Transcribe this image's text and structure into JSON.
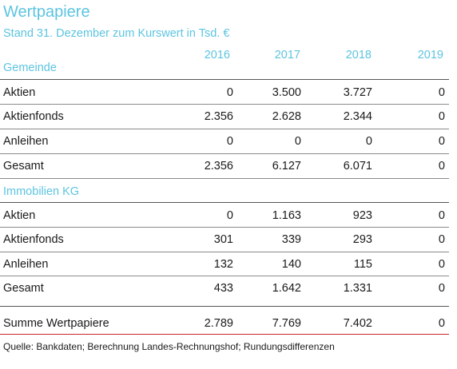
{
  "title": "Wertpapiere",
  "subtitle": "Stand 31. Dezember zum Kurswert in Tsd. €",
  "years": [
    "2016",
    "2017",
    "2018",
    "2019"
  ],
  "sections": [
    {
      "heading": "Gemeinde",
      "rows": [
        {
          "label": "Aktien",
          "values": [
            "0",
            "3.500",
            "3.727",
            "0"
          ]
        },
        {
          "label": "Aktienfonds",
          "values": [
            "2.356",
            "2.628",
            "2.344",
            "0"
          ]
        },
        {
          "label": "Anleihen",
          "values": [
            "0",
            "0",
            "0",
            "0"
          ]
        },
        {
          "label": "Gesamt",
          "values": [
            "2.356",
            "6.127",
            "6.071",
            "0"
          ]
        }
      ]
    },
    {
      "heading": "Immobilien KG",
      "rows": [
        {
          "label": "Aktien",
          "values": [
            "0",
            "1.163",
            "923",
            "0"
          ]
        },
        {
          "label": "Aktienfonds",
          "values": [
            "301",
            "339",
            "293",
            "0"
          ]
        },
        {
          "label": "Anleihen",
          "values": [
            "132",
            "140",
            "115",
            "0"
          ]
        },
        {
          "label": "Gesamt",
          "values": [
            "433",
            "1.642",
            "1.331",
            "0"
          ]
        }
      ]
    }
  ],
  "total": {
    "label": "Summe Wertpapiere",
    "values": [
      "2.789",
      "7.769",
      "7.402",
      "0"
    ]
  },
  "source": "Quelle: Bankdaten; Berechnung Landes-Rechnungshof; Rundungsdifferenzen"
}
